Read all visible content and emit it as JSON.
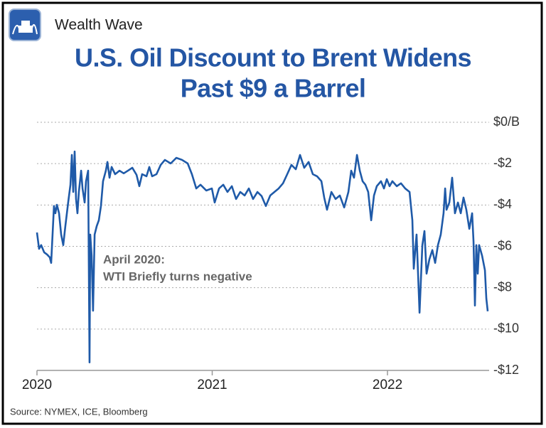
{
  "chart_data": {
    "type": "line",
    "brand": "Wealth Wave",
    "title": [
      "U.S. Oil Discount to Brent Widens",
      "Past $9 a Barrel"
    ],
    "annotation": [
      "April 2020:",
      "WTI Briefly turns negative"
    ],
    "source": "Source: NYMEX, ICE, Bloomberg",
    "color": "#1f5aa8",
    "grid": true,
    "xlim": [
      2020,
      2022.58
    ],
    "xticks": [
      2020,
      2021,
      2022
    ],
    "ylim": [
      -12,
      0
    ],
    "yticks": [
      {
        "value": 0,
        "label": "$0/B"
      },
      {
        "value": -2,
        "label": "-$2"
      },
      {
        "value": -4,
        "label": "-$4"
      },
      {
        "value": -6,
        "label": "-$6"
      },
      {
        "value": -8,
        "label": "-$8"
      },
      {
        "value": -10,
        "label": "-$10"
      },
      {
        "value": -12,
        "label": "-$12"
      }
    ],
    "x": [
      2020.0,
      2020.012,
      2020.024,
      2020.041,
      2020.057,
      2020.073,
      2020.081,
      2020.097,
      2020.105,
      2020.114,
      2020.126,
      2020.138,
      2020.15,
      2020.162,
      2020.178,
      2020.191,
      2020.199,
      2020.207,
      2020.215,
      2020.223,
      2020.231,
      2020.239,
      2020.252,
      2020.26,
      2020.272,
      2020.28,
      2020.292,
      2020.3,
      2020.304,
      2020.312,
      2020.32,
      2020.329,
      2020.341,
      2020.353,
      2020.365,
      2020.377,
      2020.393,
      2020.402,
      2020.414,
      2020.426,
      2020.446,
      2020.471,
      2020.495,
      2020.519,
      2020.544,
      2020.568,
      2020.584,
      2020.6,
      2020.625,
      2020.641,
      2020.657,
      2020.682,
      2020.706,
      2020.73,
      2020.763,
      2020.795,
      2020.828,
      2020.86,
      2020.884,
      2020.909,
      2020.933,
      2020.966,
      2020.998,
      2021.014,
      2021.039,
      2021.063,
      2021.087,
      2021.112,
      2021.136,
      2021.16,
      2021.185,
      2021.209,
      2021.233,
      2021.258,
      2021.282,
      2021.306,
      2021.331,
      2021.355,
      2021.379,
      2021.404,
      2021.428,
      2021.452,
      2021.477,
      2021.501,
      2021.525,
      2021.55,
      2021.574,
      2021.598,
      2021.623,
      2021.639,
      2021.655,
      2021.68,
      2021.704,
      2021.728,
      2021.753,
      2021.777,
      2021.793,
      2021.809,
      2021.826,
      2021.842,
      2021.858,
      2021.874,
      2021.89,
      2021.907,
      2021.923,
      2021.939,
      2021.963,
      2021.98,
      2021.996,
      2022.012,
      2022.028,
      2022.053,
      2022.077,
      2022.101,
      2022.126,
      2022.142,
      2022.15,
      2022.166,
      2022.183,
      2022.199,
      2022.211,
      2022.223,
      2022.239,
      2022.256,
      2022.272,
      2022.288,
      2022.304,
      2022.32,
      2022.329,
      2022.337,
      2022.353,
      2022.369,
      2022.385,
      2022.402,
      2022.418,
      2022.434,
      2022.45,
      2022.467,
      2022.483,
      2022.491,
      2022.499,
      2022.507,
      2022.515,
      2022.523,
      2022.54,
      2022.556,
      2022.564,
      2022.572
    ],
    "values": [
      -5.33,
      -6.12,
      -5.94,
      -6.29,
      -6.39,
      -6.53,
      -6.8,
      -4.05,
      -4.4,
      -3.99,
      -4.4,
      -5.43,
      -5.94,
      -5.02,
      -3.88,
      -3.02,
      -1.58,
      -3.37,
      -1.41,
      -3.71,
      -4.4,
      -3.37,
      -2.34,
      -3.2,
      -3.88,
      -2.85,
      -2.34,
      -11.61,
      -5.43,
      -6.46,
      -9.11,
      -5.43,
      -5.02,
      -4.74,
      -4.05,
      -2.85,
      -2.34,
      -1.92,
      -2.68,
      -2.16,
      -2.51,
      -2.34,
      -2.47,
      -2.34,
      -2.2,
      -2.54,
      -3.09,
      -2.51,
      -2.61,
      -2.16,
      -2.61,
      -2.51,
      -2.06,
      -1.82,
      -1.99,
      -1.72,
      -1.82,
      -1.99,
      -2.51,
      -3.2,
      -3.02,
      -3.3,
      -3.2,
      -3.88,
      -3.2,
      -3.02,
      -3.37,
      -3.09,
      -3.71,
      -3.37,
      -3.54,
      -3.2,
      -3.71,
      -3.37,
      -3.57,
      -4.05,
      -3.54,
      -3.37,
      -3.2,
      -2.95,
      -2.51,
      -2.06,
      -2.27,
      -1.58,
      -2.2,
      -1.92,
      -2.51,
      -2.61,
      -2.85,
      -3.64,
      -4.23,
      -3.37,
      -3.71,
      -3.54,
      -4.12,
      -3.37,
      -2.34,
      -2.68,
      -1.58,
      -2.34,
      -2.85,
      -3.02,
      -3.37,
      -4.74,
      -3.54,
      -3.09,
      -2.85,
      -3.2,
      -2.75,
      -3.09,
      -2.85,
      -3.09,
      -2.95,
      -3.2,
      -3.37,
      -4.74,
      -7.08,
      -5.43,
      -9.21,
      -5.94,
      -5.26,
      -7.32,
      -6.63,
      -6.18,
      -6.8,
      -5.94,
      -5.43,
      -4.4,
      -3.2,
      -4.23,
      -3.88,
      -2.68,
      -4.4,
      -3.88,
      -4.4,
      -3.64,
      -4.23,
      -5.15,
      -4.4,
      -5.77,
      -8.86,
      -5.94,
      -7.32,
      -5.94,
      -6.46,
      -7.15,
      -8.52,
      -9.14
    ]
  }
}
